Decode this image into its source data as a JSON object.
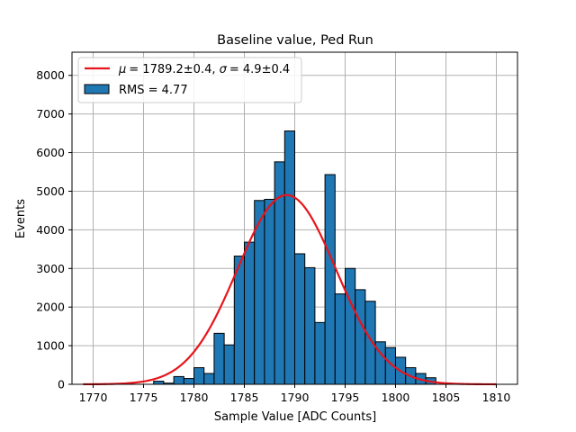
{
  "chart_data": {
    "type": "bar",
    "title": "Baseline value, Ped Run",
    "xlabel": "Sample Value [ADC Counts]",
    "ylabel": "Events",
    "xlim": [
      1767.9,
      1812.1
    ],
    "ylim": [
      0,
      8600
    ],
    "xticks": [
      1770,
      1775,
      1780,
      1785,
      1790,
      1795,
      1800,
      1805,
      1810
    ],
    "yticks": [
      0,
      1000,
      2000,
      3000,
      4000,
      5000,
      6000,
      7000,
      8000
    ],
    "grid": true,
    "legend_position": "top-left",
    "colors": {
      "bar_fill": "#1f77b4",
      "bar_edge": "#000000",
      "fit_line": "#e8141b",
      "grid": "#b0b0b0"
    },
    "histogram": {
      "name": "RMS = 4.77",
      "bin_edges": [
        1776,
        1777,
        1778,
        1779,
        1780,
        1781,
        1782,
        1783,
        1784,
        1785,
        1786,
        1787,
        1788,
        1789,
        1790,
        1791,
        1792,
        1793,
        1794,
        1795,
        1796,
        1797,
        1798,
        1799,
        1800,
        1801,
        1802,
        1803,
        1804
      ],
      "values": [
        80,
        30,
        200,
        150,
        430,
        280,
        1320,
        1020,
        3320,
        3680,
        4760,
        4790,
        5760,
        6560,
        3380,
        3020,
        1600,
        5430,
        2340,
        3000,
        2450,
        2150,
        1100,
        950,
        700,
        430,
        280,
        170
      ]
    },
    "fit": {
      "name": "μ = 1789.2±0.4, σ = 4.9±0.4",
      "mu_display": "μ",
      "sigma_display": "σ",
      "fit_values": "= 1789.2±0.4, ",
      "sigma_values": "= 4.9±0.4",
      "mu": 1789.2,
      "sigma": 4.9,
      "amplitude": 4900,
      "x_range": [
        1769,
        1810
      ]
    }
  }
}
